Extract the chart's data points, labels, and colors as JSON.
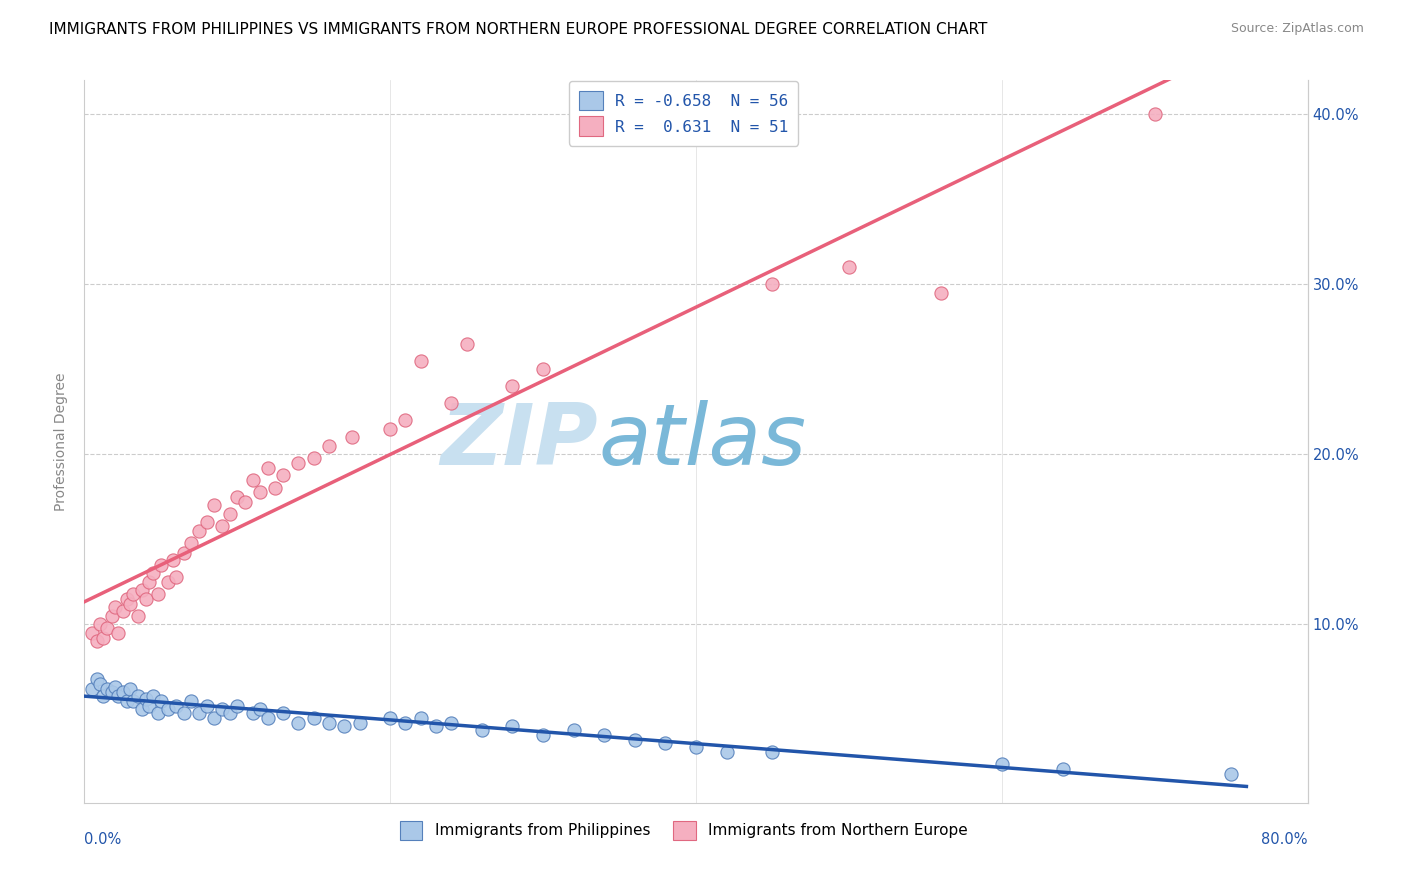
{
  "title": "IMMIGRANTS FROM PHILIPPINES VS IMMIGRANTS FROM NORTHERN EUROPE PROFESSIONAL DEGREE CORRELATION CHART",
  "source": "Source: ZipAtlas.com",
  "ylabel": "Professional Degree",
  "xrange": [
    0.0,
    0.8
  ],
  "yrange": [
    -0.005,
    0.42
  ],
  "legend_blue_label": "R = -0.658  N = 56",
  "legend_pink_label": "R =  0.631  N = 51",
  "label_blue": "Immigrants from Philippines",
  "label_pink": "Immigrants from Northern Europe",
  "watermark_zip": "ZIP",
  "watermark_atlas": "atlas",
  "blue_scatter": [
    [
      0.005,
      0.062
    ],
    [
      0.008,
      0.068
    ],
    [
      0.01,
      0.065
    ],
    [
      0.012,
      0.058
    ],
    [
      0.015,
      0.062
    ],
    [
      0.018,
      0.06
    ],
    [
      0.02,
      0.063
    ],
    [
      0.022,
      0.058
    ],
    [
      0.025,
      0.06
    ],
    [
      0.028,
      0.055
    ],
    [
      0.03,
      0.062
    ],
    [
      0.032,
      0.055
    ],
    [
      0.035,
      0.058
    ],
    [
      0.038,
      0.05
    ],
    [
      0.04,
      0.056
    ],
    [
      0.042,
      0.052
    ],
    [
      0.045,
      0.058
    ],
    [
      0.048,
      0.048
    ],
    [
      0.05,
      0.055
    ],
    [
      0.055,
      0.05
    ],
    [
      0.06,
      0.052
    ],
    [
      0.065,
      0.048
    ],
    [
      0.07,
      0.055
    ],
    [
      0.075,
      0.048
    ],
    [
      0.08,
      0.052
    ],
    [
      0.085,
      0.045
    ],
    [
      0.09,
      0.05
    ],
    [
      0.095,
      0.048
    ],
    [
      0.1,
      0.052
    ],
    [
      0.11,
      0.048
    ],
    [
      0.115,
      0.05
    ],
    [
      0.12,
      0.045
    ],
    [
      0.13,
      0.048
    ],
    [
      0.14,
      0.042
    ],
    [
      0.15,
      0.045
    ],
    [
      0.16,
      0.042
    ],
    [
      0.17,
      0.04
    ],
    [
      0.18,
      0.042
    ],
    [
      0.2,
      0.045
    ],
    [
      0.21,
      0.042
    ],
    [
      0.22,
      0.045
    ],
    [
      0.23,
      0.04
    ],
    [
      0.24,
      0.042
    ],
    [
      0.26,
      0.038
    ],
    [
      0.28,
      0.04
    ],
    [
      0.3,
      0.035
    ],
    [
      0.32,
      0.038
    ],
    [
      0.34,
      0.035
    ],
    [
      0.36,
      0.032
    ],
    [
      0.38,
      0.03
    ],
    [
      0.4,
      0.028
    ],
    [
      0.42,
      0.025
    ],
    [
      0.45,
      0.025
    ],
    [
      0.6,
      0.018
    ],
    [
      0.64,
      0.015
    ],
    [
      0.75,
      0.012
    ]
  ],
  "pink_scatter": [
    [
      0.005,
      0.095
    ],
    [
      0.008,
      0.09
    ],
    [
      0.01,
      0.1
    ],
    [
      0.012,
      0.092
    ],
    [
      0.015,
      0.098
    ],
    [
      0.018,
      0.105
    ],
    [
      0.02,
      0.11
    ],
    [
      0.022,
      0.095
    ],
    [
      0.025,
      0.108
    ],
    [
      0.028,
      0.115
    ],
    [
      0.03,
      0.112
    ],
    [
      0.032,
      0.118
    ],
    [
      0.035,
      0.105
    ],
    [
      0.038,
      0.12
    ],
    [
      0.04,
      0.115
    ],
    [
      0.042,
      0.125
    ],
    [
      0.045,
      0.13
    ],
    [
      0.048,
      0.118
    ],
    [
      0.05,
      0.135
    ],
    [
      0.055,
      0.125
    ],
    [
      0.058,
      0.138
    ],
    [
      0.06,
      0.128
    ],
    [
      0.065,
      0.142
    ],
    [
      0.07,
      0.148
    ],
    [
      0.075,
      0.155
    ],
    [
      0.08,
      0.16
    ],
    [
      0.085,
      0.17
    ],
    [
      0.09,
      0.158
    ],
    [
      0.095,
      0.165
    ],
    [
      0.1,
      0.175
    ],
    [
      0.105,
      0.172
    ],
    [
      0.11,
      0.185
    ],
    [
      0.115,
      0.178
    ],
    [
      0.12,
      0.192
    ],
    [
      0.125,
      0.18
    ],
    [
      0.13,
      0.188
    ],
    [
      0.14,
      0.195
    ],
    [
      0.15,
      0.198
    ],
    [
      0.16,
      0.205
    ],
    [
      0.175,
      0.21
    ],
    [
      0.2,
      0.215
    ],
    [
      0.21,
      0.22
    ],
    [
      0.22,
      0.255
    ],
    [
      0.24,
      0.23
    ],
    [
      0.25,
      0.265
    ],
    [
      0.28,
      0.24
    ],
    [
      0.3,
      0.25
    ],
    [
      0.45,
      0.3
    ],
    [
      0.5,
      0.31
    ],
    [
      0.56,
      0.295
    ],
    [
      0.7,
      0.4
    ]
  ],
  "blue_color": "#aac8e8",
  "pink_color": "#f5afc0",
  "blue_edge_color": "#5580bb",
  "pink_edge_color": "#e06880",
  "blue_line_color": "#2255aa",
  "pink_line_color": "#e8607a",
  "watermark_color": "#c8e0f0",
  "watermark_atlas_color": "#7ab8d8",
  "title_fontsize": 11,
  "source_fontsize": 9,
  "legend_fontsize": 11.5
}
